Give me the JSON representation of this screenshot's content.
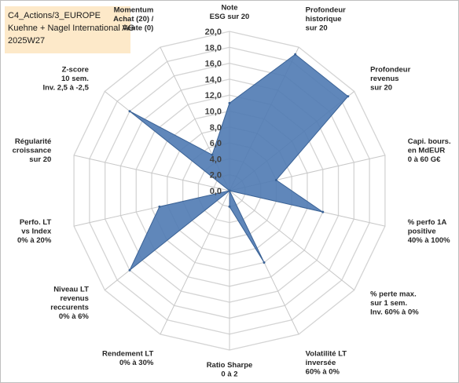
{
  "header": {
    "lines": [
      "C4_Actions/3_EUROPE",
      "Kuehne + Nagel International AG",
      "2025W27"
    ]
  },
  "chart_data": {
    "type": "radar",
    "title": "",
    "rmax": 20,
    "ticks": [
      "0,0",
      "2,0",
      "4,0",
      "6,0",
      "8,0",
      "10,0",
      "12,0",
      "14,0",
      "16,0",
      "18,0",
      "20,0"
    ],
    "axes": [
      {
        "label": [
          "Note",
          "ESG sur 20"
        ]
      },
      {
        "label": [
          "Profondeur",
          "historique",
          "sur 20"
        ]
      },
      {
        "label": [
          "Profondeur",
          "revenus",
          "sur 20"
        ]
      },
      {
        "label": [
          "Capi. bours.",
          "en MdEUR",
          "0 à 60 G€"
        ]
      },
      {
        "label": [
          "% perfo 1A",
          "positive",
          "40% à 100%"
        ]
      },
      {
        "label": [
          "% perte max.",
          "sur 1 sem.",
          "Inv. 60% à 0%"
        ]
      },
      {
        "label": [
          "Volatilité LT",
          "inversée",
          "60% à 0%"
        ]
      },
      {
        "label": [
          "Ratio Sharpe",
          "0 à 2"
        ]
      },
      {
        "label": [
          "Rendement LT",
          "0% à 30%"
        ]
      },
      {
        "label": [
          "Niveau LT",
          "revenus",
          "reccurents",
          "0% à 6%"
        ]
      },
      {
        "label": [
          "Perfo. LT",
          "vs Index",
          "0% à 20%"
        ]
      },
      {
        "label": [
          "Régularité",
          "croissance",
          "sur 20"
        ]
      },
      {
        "label": [
          "Z-score",
          "10 sem.",
          "Inv. 2,5 à -2,5"
        ]
      },
      {
        "label": [
          "Momentum",
          "Achat (20) /",
          "Vente (0)"
        ]
      }
    ],
    "series": [
      {
        "values": [
          11.0,
          19.0,
          19.0,
          6.0,
          12.0,
          0.0,
          10.0,
          2.0,
          0.0,
          16.0,
          9.0,
          0.0,
          16.0,
          5.0
        ]
      }
    ],
    "colors": {
      "fill": "#4f7ab3",
      "stroke": "#3a6296",
      "grid": "#d4d4d4",
      "spoke": "#c8c8c8"
    },
    "grid": true
  }
}
